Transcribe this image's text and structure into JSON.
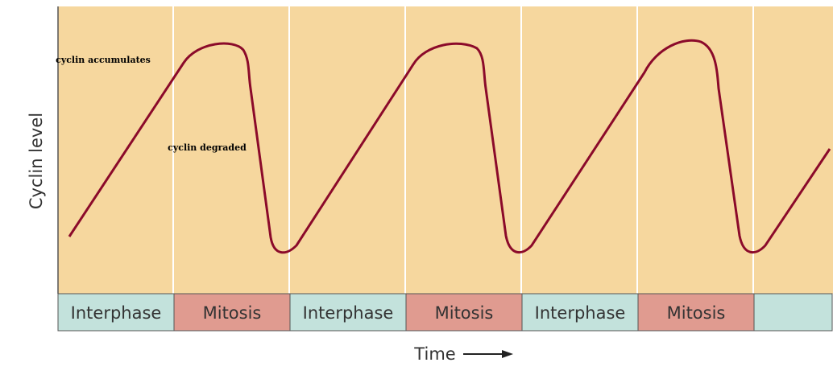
{
  "y_axis_label": "Cyclin level",
  "x_axis_label": "Time",
  "annotations": [
    "cyclin accumulates",
    "cyclin degraded"
  ],
  "phases": [
    "Interphase",
    "Mitosis",
    "Interphase",
    "Mitosis",
    "Interphase",
    "Mitosis"
  ]
}
